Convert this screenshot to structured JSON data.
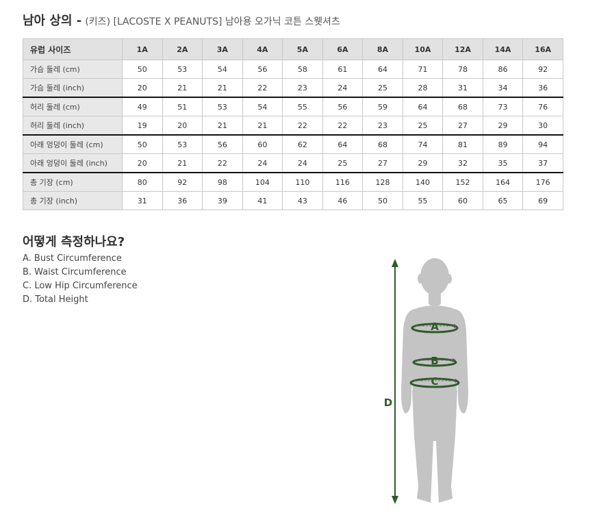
{
  "title": {
    "main": "남아 상의 -",
    "sub": "(키즈) [LACOSTE X PEANUTS] 남아용 오가닉 코튼 스웻셔츠"
  },
  "table": {
    "header_label": "유럽 사이즈",
    "sizes": [
      "1A",
      "2A",
      "3A",
      "4A",
      "5A",
      "6A",
      "8A",
      "10A",
      "12A",
      "14A",
      "16A"
    ],
    "rows": [
      {
        "label": "가슴 둘레 (cm)",
        "values": [
          "50",
          "53",
          "54",
          "56",
          "58",
          "61",
          "64",
          "71",
          "78",
          "86",
          "92"
        ]
      },
      {
        "label": "가슴 둘레 (inch)",
        "values": [
          "20",
          "21",
          "21",
          "22",
          "23",
          "24",
          "25",
          "28",
          "31",
          "34",
          "36"
        ]
      },
      {
        "label": "허리 둘레 (cm)",
        "values": [
          "49",
          "51",
          "53",
          "54",
          "55",
          "56",
          "59",
          "64",
          "68",
          "73",
          "76"
        ]
      },
      {
        "label": "허리 둘레 (inch)",
        "values": [
          "19",
          "20",
          "21",
          "21",
          "22",
          "22",
          "23",
          "25",
          "27",
          "29",
          "30"
        ]
      },
      {
        "label": "아래 엉덩이 둘레 (cm)",
        "values": [
          "50",
          "53",
          "56",
          "60",
          "62",
          "64",
          "68",
          "74",
          "81",
          "89",
          "94"
        ]
      },
      {
        "label": "아래 엉덩이 둘레 (inch)",
        "values": [
          "20",
          "21",
          "22",
          "24",
          "24",
          "25",
          "27",
          "29",
          "32",
          "35",
          "37"
        ]
      },
      {
        "label": "총 기장 (cm)",
        "values": [
          "80",
          "92",
          "98",
          "104",
          "110",
          "116",
          "128",
          "140",
          "152",
          "164",
          "176"
        ]
      },
      {
        "label": "총 기장 (inch)",
        "values": [
          "31",
          "36",
          "39",
          "41",
          "43",
          "46",
          "50",
          "55",
          "60",
          "65",
          "69"
        ]
      }
    ]
  },
  "how_to_measure": {
    "title": "어떻게 측정하나요?",
    "items": [
      "A. Bust Circumference",
      "B. Waist Circumference",
      "C. Low Hip Circumference",
      "D. Total Height"
    ]
  },
  "figure": {
    "labels": {
      "a": "A",
      "b": "B",
      "c": "C",
      "d": "D"
    },
    "colors": {
      "body": "#c4c4c4",
      "accent": "#2f5a2a"
    }
  }
}
